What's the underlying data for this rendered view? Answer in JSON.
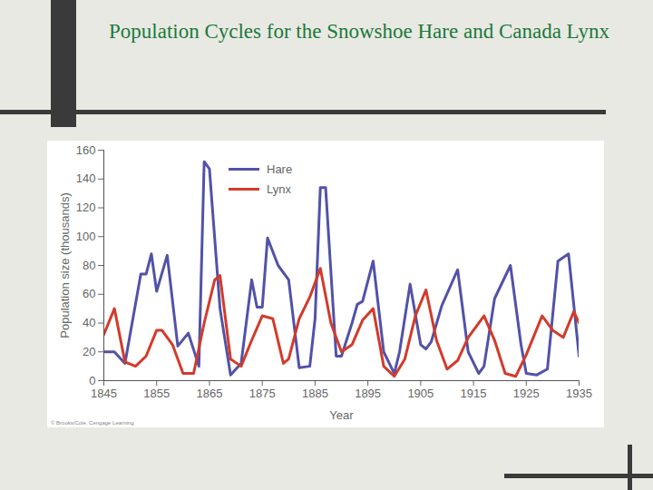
{
  "chart_data": {
    "type": "line",
    "title": "Population Cycles for the Snowshoe Hare and Canada Lynx",
    "x_label": "Year",
    "y_label": "Population size (thousands)",
    "caption": "© Brooks/Cole, Cengage Learning",
    "xlim": [
      1845,
      1935
    ],
    "xticks": [
      1845,
      1855,
      1865,
      1875,
      1885,
      1895,
      1905,
      1915,
      1925,
      1935
    ],
    "ylim": [
      0,
      160
    ],
    "yticks": [
      0,
      20,
      40,
      60,
      80,
      100,
      120,
      140,
      160
    ],
    "grid": false,
    "legend": "top",
    "series": [
      {
        "name": "Hare",
        "color": "#5252a8",
        "x": [
          1845,
          1847,
          1849,
          1852,
          1853,
          1854,
          1855,
          1857,
          1859,
          1861,
          1863,
          1864,
          1865,
          1867,
          1869,
          1871,
          1873,
          1874,
          1875,
          1876,
          1878,
          1880,
          1882,
          1884,
          1885,
          1886,
          1887,
          1889,
          1890,
          1892,
          1893,
          1894,
          1896,
          1898,
          1900,
          1901,
          1903,
          1905,
          1906,
          1907,
          1909,
          1912,
          1914,
          1916,
          1917,
          1919,
          1922,
          1924,
          1925,
          1927,
          1929,
          1931,
          1933,
          1935
        ],
        "values": [
          20,
          20,
          12,
          74,
          74,
          88,
          62,
          87,
          24,
          33,
          10,
          152,
          147,
          50,
          4,
          12,
          70,
          51,
          51,
          99,
          80,
          70,
          9,
          10,
          43,
          134,
          134,
          17,
          17,
          40,
          53,
          55,
          83,
          20,
          5,
          20,
          67,
          25,
          22,
          27,
          52,
          77,
          20,
          5,
          10,
          57,
          80,
          25,
          5,
          4,
          8,
          83,
          88,
          17
        ]
      },
      {
        "name": "Lynx",
        "color": "#d23b2b",
        "x": [
          1845,
          1847,
          1849,
          1851,
          1853,
          1855,
          1856,
          1858,
          1860,
          1862,
          1864,
          1866,
          1867,
          1869,
          1871,
          1873,
          1875,
          1877,
          1879,
          1880,
          1882,
          1884,
          1886,
          1888,
          1890,
          1892,
          1894,
          1896,
          1898,
          1900,
          1902,
          1904,
          1906,
          1908,
          1910,
          1912,
          1914,
          1917,
          1919,
          1921,
          1923,
          1925,
          1928,
          1930,
          1932,
          1934,
          1935
        ],
        "values": [
          32,
          50,
          13,
          10,
          17,
          35,
          35,
          25,
          5,
          5,
          40,
          70,
          73,
          15,
          10,
          28,
          45,
          43,
          12,
          15,
          43,
          58,
          78,
          40,
          20,
          25,
          42,
          50,
          10,
          3,
          15,
          45,
          63,
          28,
          8,
          14,
          30,
          45,
          28,
          5,
          3,
          18,
          45,
          35,
          30,
          48,
          40
        ]
      }
    ]
  }
}
